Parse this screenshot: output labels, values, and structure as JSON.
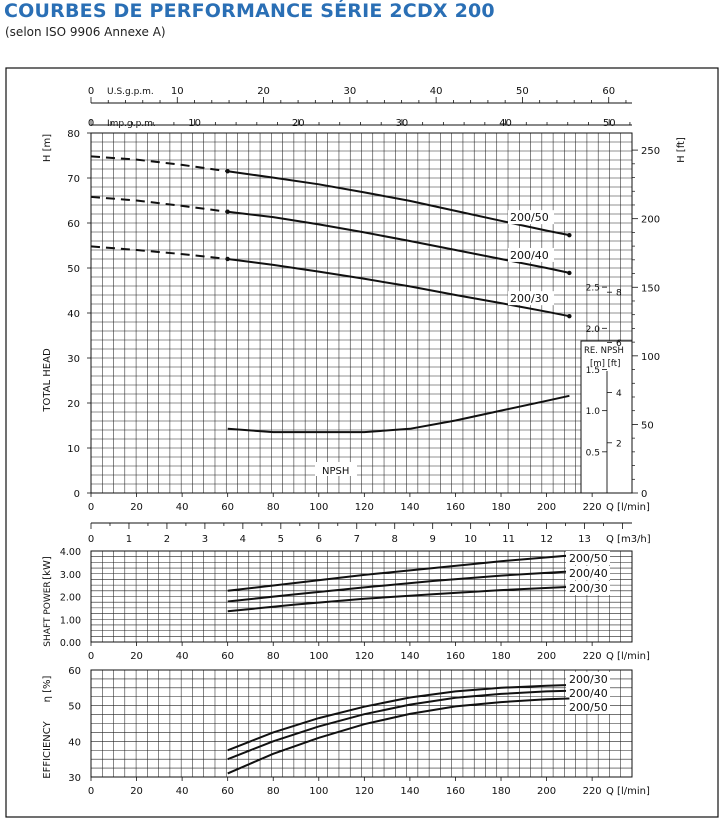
{
  "header": {
    "title": "COURBES DE PERFORMANCE SÉRIE 2CDX 200",
    "subtitle": "(selon ISO 9906 Annexe A)"
  },
  "colors": {
    "title": "#2a6fb5",
    "ink": "#111111",
    "grid": "#222222"
  },
  "chart_data": [
    {
      "type": "line",
      "panel": "head",
      "top_axis_1": {
        "label": "U.S.g.p.m.",
        "ticks": [
          "0",
          "10",
          "20",
          "30",
          "40",
          "50",
          "60"
        ],
        "range": [
          0,
          62.7
        ]
      },
      "top_axis_2": {
        "label": "Imp.g.p.m.",
        "ticks": [
          "0",
          "10",
          "20",
          "30",
          "40",
          "50"
        ],
        "range": [
          0,
          52.2
        ]
      },
      "left_unit": "H  [m]",
      "right_unit": "H  [ft]",
      "ylabel": "TOTAL HEAD",
      "xlim": [
        0,
        237.5
      ],
      "ylim": [
        0,
        80
      ],
      "yticks": [
        "0",
        "10",
        "20",
        "30",
        "40",
        "50",
        "60",
        "70",
        "80"
      ],
      "right_ticks": [
        "0",
        "50",
        "100",
        "150",
        "200",
        "250"
      ],
      "xticks": [
        "0",
        "20",
        "40",
        "60",
        "80",
        "100",
        "120",
        "140",
        "160",
        "180",
        "200",
        "220"
      ],
      "x_unit": "Q  [l/min]",
      "grid": true,
      "series": [
        {
          "name": "200/50",
          "x": [
            60,
            80,
            100,
            120,
            140,
            160,
            180,
            200,
            210
          ],
          "y": [
            71.5,
            70.1,
            68.6,
            66.8,
            64.9,
            62.7,
            60.5,
            58.3,
            57.3
          ],
          "dashed_x": [
            0,
            20,
            40,
            60
          ],
          "dashed_y": [
            74.8,
            74.1,
            72.9,
            71.5
          ]
        },
        {
          "name": "200/40",
          "x": [
            60,
            80,
            100,
            120,
            140,
            160,
            180,
            200,
            210
          ],
          "y": [
            62.5,
            61.3,
            59.7,
            57.9,
            56.0,
            54.0,
            52.0,
            50.0,
            48.9
          ],
          "dashed_x": [
            0,
            20,
            40,
            60
          ],
          "dashed_y": [
            65.8,
            65.0,
            63.8,
            62.5
          ]
        },
        {
          "name": "200/30",
          "x": [
            60,
            80,
            100,
            120,
            140,
            160,
            180,
            200,
            210
          ],
          "y": [
            52.0,
            50.7,
            49.2,
            47.6,
            45.9,
            44.0,
            42.2,
            40.3,
            39.3
          ],
          "dashed_x": [
            0,
            20,
            40,
            60
          ],
          "dashed_y": [
            54.8,
            54.0,
            53.1,
            52.0
          ]
        }
      ],
      "npsh": {
        "label": "NPSH",
        "box_title": "RE. NPSH",
        "box_units": "[m] [ft]",
        "m_ticks": [
          "2.5",
          "2.0",
          "1.5",
          "1.0",
          "0.5"
        ],
        "ft_ticks": [
          "8",
          "6",
          "4",
          "2"
        ],
        "x": [
          60,
          80,
          100,
          120,
          140,
          160,
          180,
          200,
          210
        ],
        "y_m": [
          0.78,
          0.74,
          0.74,
          0.74,
          0.78,
          0.88,
          1.0,
          1.12,
          1.18
        ]
      },
      "flow_m3h": {
        "label": "Q  [m3/h]",
        "ticks": [
          "0",
          "1",
          "2",
          "3",
          "4",
          "5",
          "6",
          "7",
          "8",
          "9",
          "10",
          "11",
          "12",
          "13"
        ],
        "range": [
          0,
          14.25
        ]
      }
    },
    {
      "type": "line",
      "panel": "power",
      "ylabel": "SHAFT POWER",
      "unit": "[kW]",
      "xlim": [
        0,
        237.5
      ],
      "ylim": [
        0,
        4
      ],
      "yticks": [
        "0.00",
        "1.00",
        "2.00",
        "3.00",
        "4.00"
      ],
      "xticks": [
        "0",
        "20",
        "40",
        "60",
        "80",
        "100",
        "120",
        "140",
        "160",
        "180",
        "200",
        "220"
      ],
      "x_unit": "Q  [l/min]",
      "grid": true,
      "series": [
        {
          "name": "200/50",
          "x": [
            60,
            90,
            120,
            150,
            180,
            210
          ],
          "y": [
            2.25,
            2.6,
            2.95,
            3.25,
            3.55,
            3.8
          ]
        },
        {
          "name": "200/40",
          "x": [
            60,
            90,
            120,
            150,
            180,
            210
          ],
          "y": [
            1.78,
            2.1,
            2.4,
            2.68,
            2.92,
            3.1
          ]
        },
        {
          "name": "200/30",
          "x": [
            60,
            90,
            120,
            150,
            180,
            210
          ],
          "y": [
            1.35,
            1.65,
            1.9,
            2.1,
            2.28,
            2.42
          ]
        }
      ]
    },
    {
      "type": "line",
      "panel": "efficiency",
      "ylabel": "EFFICIENCY",
      "unit": "η [%]",
      "xlim": [
        0,
        237.5
      ],
      "ylim": [
        30,
        60
      ],
      "yticks": [
        "30",
        "40",
        "50",
        "60"
      ],
      "xticks": [
        "0",
        "20",
        "40",
        "60",
        "80",
        "100",
        "120",
        "140",
        "160",
        "180",
        "200",
        "220"
      ],
      "x_unit": "Q  [l/min]",
      "grid": true,
      "series": [
        {
          "name": "200/30",
          "x": [
            60,
            80,
            100,
            120,
            140,
            160,
            180,
            200,
            210
          ],
          "y": [
            37.5,
            42.5,
            46.5,
            49.7,
            52.3,
            54.0,
            55.0,
            55.6,
            55.8
          ]
        },
        {
          "name": "200/40",
          "x": [
            60,
            80,
            100,
            120,
            140,
            160,
            180,
            200,
            210
          ],
          "y": [
            35.0,
            40.0,
            44.2,
            47.6,
            50.3,
            52.2,
            53.3,
            54.0,
            54.2
          ]
        },
        {
          "name": "200/50",
          "x": [
            60,
            80,
            100,
            120,
            140,
            160,
            180,
            200,
            210
          ],
          "y": [
            31.0,
            36.5,
            41.0,
            44.8,
            47.7,
            49.8,
            51.0,
            51.8,
            52.0
          ]
        }
      ]
    }
  ]
}
